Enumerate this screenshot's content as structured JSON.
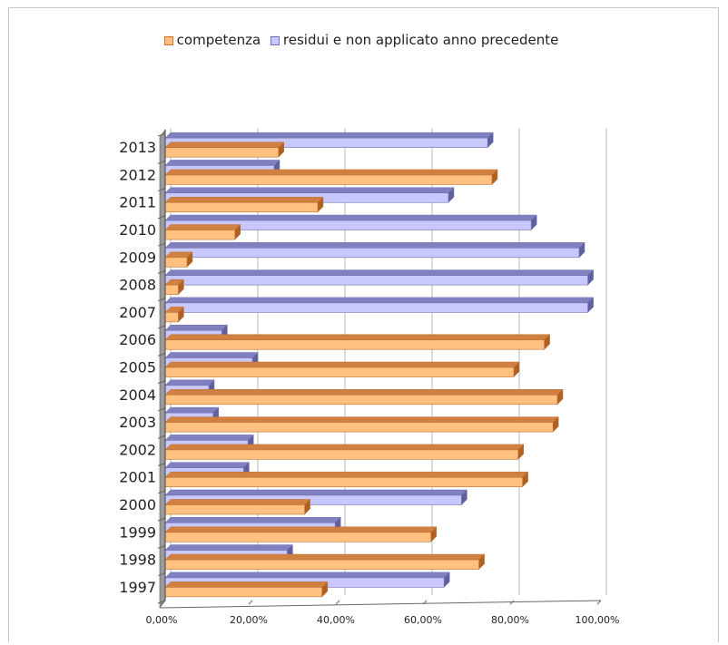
{
  "chart_data": {
    "type": "bar",
    "orientation": "horizontal",
    "style": "3d",
    "categories": [
      "1997",
      "1998",
      "1999",
      "2000",
      "2001",
      "2002",
      "2003",
      "2004",
      "2005",
      "2006",
      "2007",
      "2008",
      "2009",
      "2010",
      "2011",
      "2012",
      "2013"
    ],
    "series": [
      {
        "name": "competenza",
        "color": "#ffc080",
        "values": [
          36,
          72,
          61,
          32,
          82,
          81,
          89,
          90,
          80,
          87,
          3,
          3,
          5,
          16,
          35,
          75,
          26
        ]
      },
      {
        "name": "residui e non applicato anno precedente",
        "color": "#c8c8ff",
        "values": [
          64,
          28,
          39,
          68,
          18,
          19,
          11,
          10,
          20,
          13,
          97,
          97,
          95,
          84,
          65,
          25,
          74
        ]
      }
    ],
    "xlim": [
      0,
      100
    ],
    "x_ticks": [
      "0,00%",
      "20,00%",
      "40,00%",
      "60,00%",
      "80,00%",
      "100,00%"
    ],
    "grid": true,
    "legend_position": "top"
  }
}
